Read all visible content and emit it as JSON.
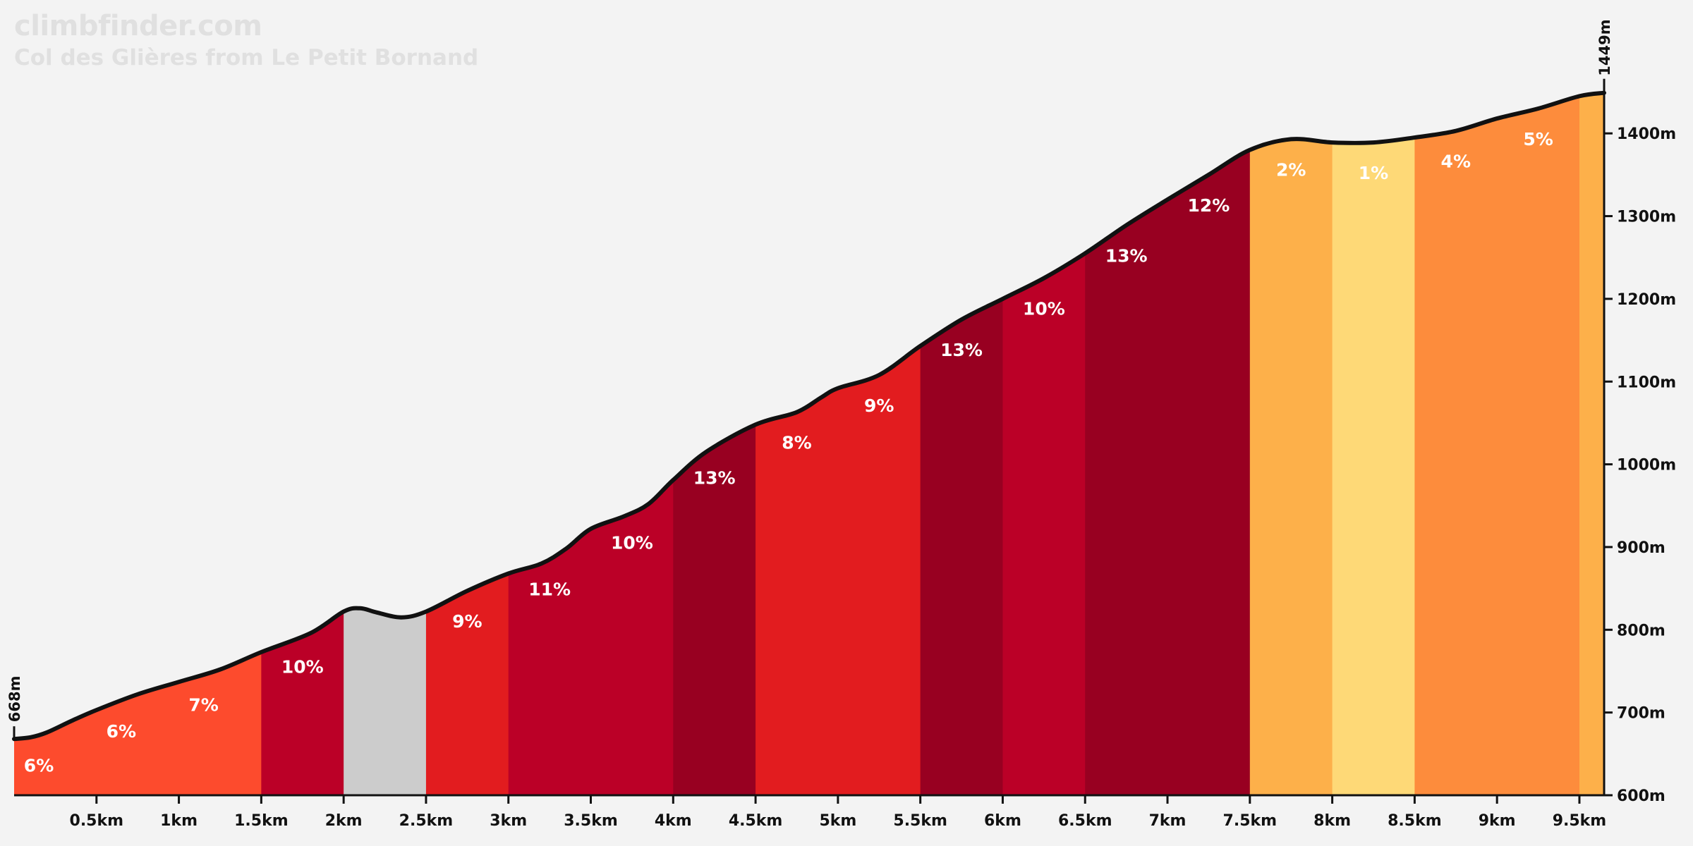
{
  "header": {
    "brand": "climbfinder.com",
    "subtitle": "Col des Glières from Le Petit Bornand"
  },
  "colors": {
    "background": "#f3f3f3",
    "profile_line": "#111111",
    "axis": "#111111",
    "gradient_label": "#ffffff",
    "watermark": "#e0e0e0"
  },
  "chart_data": {
    "type": "area",
    "title": "Col des Glières from Le Petit Bornand",
    "xlabel": "",
    "ylabel": "",
    "xlim": [
      0,
      9.65
    ],
    "ylim": [
      600,
      1449
    ],
    "x_ticks": [
      {
        "value": 0.5,
        "label": "0.5km"
      },
      {
        "value": 1,
        "label": "1km"
      },
      {
        "value": 1.5,
        "label": "1.5km"
      },
      {
        "value": 2,
        "label": "2km"
      },
      {
        "value": 2.5,
        "label": "2.5km"
      },
      {
        "value": 3,
        "label": "3km"
      },
      {
        "value": 3.5,
        "label": "3.5km"
      },
      {
        "value": 4,
        "label": "4km"
      },
      {
        "value": 4.5,
        "label": "4.5km"
      },
      {
        "value": 5,
        "label": "5km"
      },
      {
        "value": 5.5,
        "label": "5.5km"
      },
      {
        "value": 6,
        "label": "6km"
      },
      {
        "value": 6.5,
        "label": "6.5km"
      },
      {
        "value": 7,
        "label": "7km"
      },
      {
        "value": 7.5,
        "label": "7.5km"
      },
      {
        "value": 8,
        "label": "8km"
      },
      {
        "value": 8.5,
        "label": "8.5km"
      },
      {
        "value": 9,
        "label": "9km"
      },
      {
        "value": 9.5,
        "label": "9.5km"
      }
    ],
    "y_ticks": [
      {
        "value": 600,
        "label": "600m"
      },
      {
        "value": 700,
        "label": "700m"
      },
      {
        "value": 800,
        "label": "800m"
      },
      {
        "value": 900,
        "label": "900m"
      },
      {
        "value": 1000,
        "label": "1000m"
      },
      {
        "value": 1100,
        "label": "1100m"
      },
      {
        "value": 1200,
        "label": "1200m"
      },
      {
        "value": 1300,
        "label": "1300m"
      },
      {
        "value": 1400,
        "label": "1400m"
      }
    ],
    "start_elevation_label": "668m",
    "end_elevation_label": "1449m",
    "profile": {
      "x": [
        0,
        0.1,
        0.2,
        0.35,
        0.5,
        0.75,
        1.0,
        1.25,
        1.5,
        1.8,
        2.0,
        2.1,
        2.2,
        2.35,
        2.5,
        2.75,
        3.0,
        3.2,
        3.35,
        3.5,
        3.7,
        3.85,
        4.0,
        4.2,
        4.5,
        4.75,
        4.9,
        5.0,
        5.25,
        5.5,
        5.75,
        6.0,
        6.25,
        6.5,
        6.75,
        7.0,
        7.25,
        7.5,
        7.75,
        8.0,
        8.25,
        8.5,
        8.75,
        9.0,
        9.25,
        9.5,
        9.65
      ],
      "elevation": [
        668,
        670,
        676,
        690,
        703,
        722,
        737,
        752,
        773,
        796,
        822,
        826,
        821,
        815,
        822,
        847,
        868,
        880,
        898,
        922,
        937,
        952,
        981,
        1015,
        1048,
        1063,
        1081,
        1092,
        1108,
        1143,
        1175,
        1200,
        1225,
        1255,
        1289,
        1320,
        1350,
        1380,
        1393,
        1389,
        1389,
        1395,
        1403,
        1418,
        1430,
        1445,
        1449
      ]
    },
    "segments": [
      {
        "start": 0.0,
        "end": 1.5,
        "color": "#fd4b2d",
        "label": ""
      },
      {
        "start": 1.5,
        "end": 2.0,
        "color": "#bb0027",
        "label": "10%"
      },
      {
        "start": 2.0,
        "end": 2.5,
        "color": "#cccccc",
        "label": ""
      },
      {
        "start": 2.5,
        "end": 3.0,
        "color": "#e21c1f",
        "label": "9%"
      },
      {
        "start": 3.0,
        "end": 4.0,
        "color": "#bb0027",
        "label": ""
      },
      {
        "start": 4.0,
        "end": 4.5,
        "color": "#980021",
        "label": "13%"
      },
      {
        "start": 4.5,
        "end": 5.5,
        "color": "#e21c1f",
        "label": ""
      },
      {
        "start": 5.5,
        "end": 6.0,
        "color": "#980021",
        "label": "13%"
      },
      {
        "start": 6.0,
        "end": 6.5,
        "color": "#bb0027",
        "label": "10%"
      },
      {
        "start": 6.5,
        "end": 7.5,
        "color": "#980021",
        "label": ""
      },
      {
        "start": 7.5,
        "end": 8.0,
        "color": "#fdb04a",
        "label": "2%"
      },
      {
        "start": 8.0,
        "end": 8.5,
        "color": "#fed977",
        "label": "1%"
      },
      {
        "start": 8.5,
        "end": 9.5,
        "color": "#fd8c3c",
        "label": ""
      },
      {
        "start": 9.5,
        "end": 9.65,
        "color": "#fdb04a",
        "label": ""
      }
    ],
    "gradient_labels": [
      {
        "x": 0.15,
        "label": "6%"
      },
      {
        "x": 0.65,
        "label": "6%"
      },
      {
        "x": 1.15,
        "label": "7%"
      },
      {
        "x": 1.75,
        "label": "10%"
      },
      {
        "x": 2.75,
        "label": "9%"
      },
      {
        "x": 3.25,
        "label": "11%"
      },
      {
        "x": 3.75,
        "label": "10%"
      },
      {
        "x": 4.25,
        "label": "13%"
      },
      {
        "x": 4.75,
        "label": "8%"
      },
      {
        "x": 5.25,
        "label": "9%"
      },
      {
        "x": 5.75,
        "label": "13%"
      },
      {
        "x": 6.25,
        "label": "10%"
      },
      {
        "x": 6.75,
        "label": "13%"
      },
      {
        "x": 7.25,
        "label": "12%"
      },
      {
        "x": 7.75,
        "label": "2%"
      },
      {
        "x": 8.25,
        "label": "1%"
      },
      {
        "x": 8.75,
        "label": "4%"
      },
      {
        "x": 9.25,
        "label": "5%"
      }
    ]
  }
}
